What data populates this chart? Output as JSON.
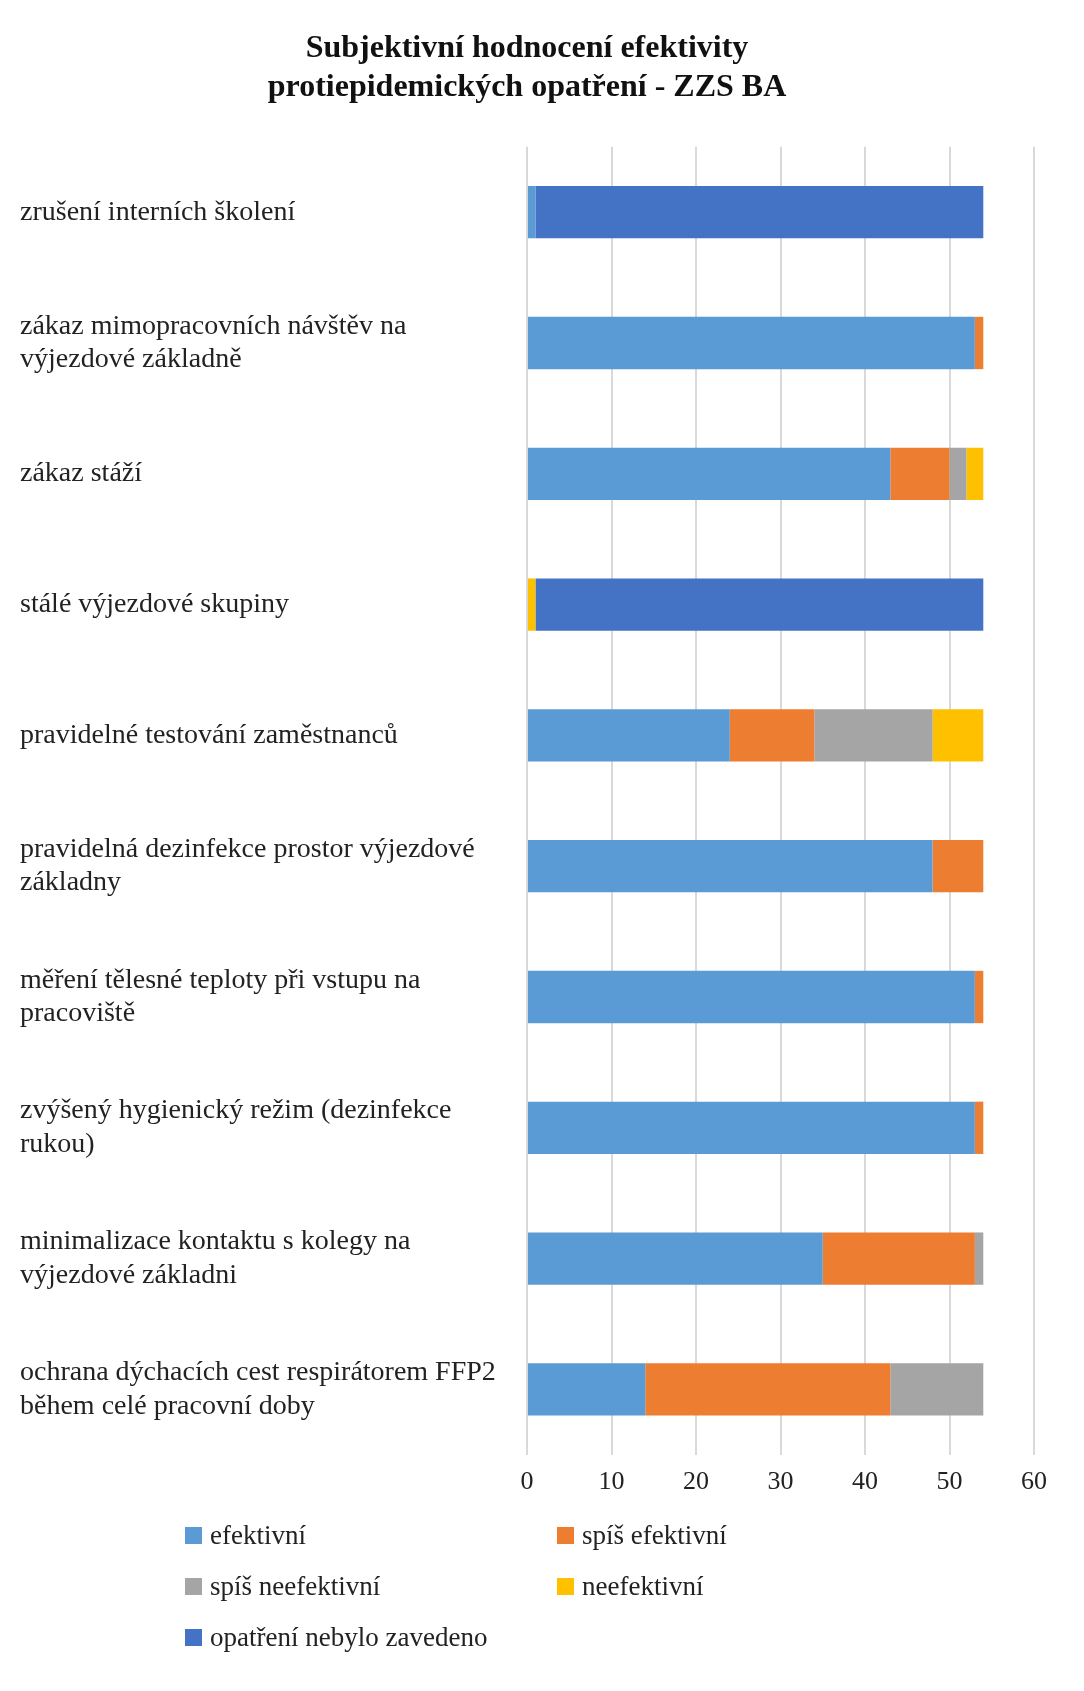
{
  "chart_data": {
    "type": "bar",
    "orientation": "horizontal",
    "stacked": true,
    "title": "Subjektivní hodnocení efektivity protiepidemických opatření - ZZS BA",
    "categories": [
      "zrušení interních školení",
      "zákaz mimopracovních návštěv na výjezdové základně",
      "zákaz stáží",
      "stálé výjezdové skupiny",
      "pravidelné testování zaměstnanců",
      "pravidelná dezinfekce prostor výjezdové základny",
      "měření tělesné teploty při vstupu na pracoviště",
      "zvýšený hygienický režim (dezinfekce rukou)",
      "minimalizace kontaktu s kolegy na výjezdové základni",
      "ochrana dýchacích cest respirátorem FFP2  během celé pracovní doby"
    ],
    "series": [
      {
        "name": "efektivní",
        "color": "#5b9bd5",
        "values": [
          1,
          53,
          43,
          0,
          24,
          48,
          53,
          53,
          35,
          14
        ]
      },
      {
        "name": "spíš efektivní",
        "color": "#ed7d31",
        "values": [
          0,
          1,
          7,
          0,
          10,
          6,
          1,
          1,
          18,
          29
        ]
      },
      {
        "name": "spíš neefektivní",
        "color": "#a5a5a5",
        "values": [
          0,
          0,
          2,
          0,
          14,
          0,
          0,
          0,
          1,
          11
        ]
      },
      {
        "name": "neefektivní",
        "color": "#ffc000",
        "values": [
          0,
          0,
          2,
          1,
          6,
          0,
          0,
          0,
          0,
          0
        ]
      },
      {
        "name": "opatření nebylo zavedeno",
        "color": "#4472c4",
        "values": [
          53,
          0,
          0,
          53,
          0,
          0,
          0,
          0,
          0,
          0
        ]
      }
    ],
    "xlim": [
      0,
      60
    ],
    "xticks": [
      0,
      10,
      20,
      30,
      40,
      50,
      60
    ],
    "grid": "x",
    "legend": "bottom"
  }
}
